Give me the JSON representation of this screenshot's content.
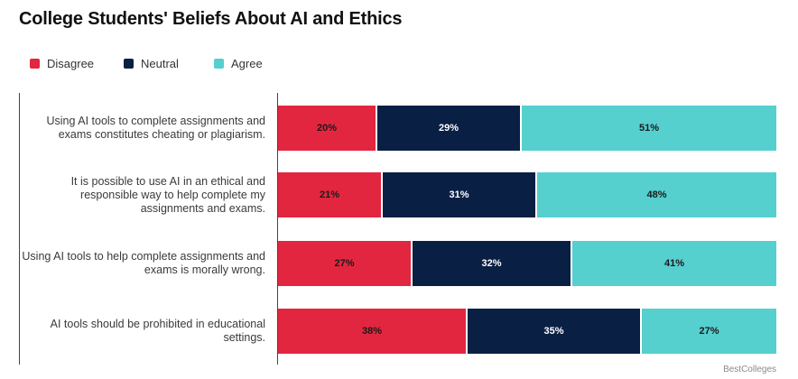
{
  "chart_data": {
    "type": "bar",
    "orientation": "horizontal",
    "stacked": true,
    "title": "College Students' Beliefs About AI and Ethics",
    "xlabel": "",
    "ylabel": "",
    "xlim": [
      0,
      100
    ],
    "grid": false,
    "legend_position": "top-left",
    "categories": [
      "Using AI tools to complete assignments and exams constitutes cheating or plagiarism.",
      "It is possible to use AI in an ethical and responsible way to help complete my assignments and exams.",
      "Using AI tools to help complete assignments and exams is morally wrong.",
      "AI tools should be prohibited in educational settings."
    ],
    "category_lines": [
      [
        "Using AI tools to complete assignments and",
        "exams constitutes cheating or plagiarism."
      ],
      [
        "It is possible to use AI in an ethical and",
        "responsible way to help complete my",
        "assignments and exams."
      ],
      [
        "Using AI tools to help complete assignments and",
        "exams is morally wrong."
      ],
      [
        "AI tools should be prohibited in educational",
        "settings."
      ]
    ],
    "series": [
      {
        "name": "Disagree",
        "color": "#e3263f",
        "text_color": "#1a1a1a",
        "values": [
          20,
          21,
          27,
          38
        ],
        "labels": [
          "20%",
          "21%",
          "27%",
          "38%"
        ]
      },
      {
        "name": "Neutral",
        "color": "#0a1f44",
        "text_color": "#ffffff",
        "values": [
          29,
          31,
          32,
          35
        ],
        "labels": [
          "29%",
          "31%",
          "32%",
          "35%"
        ]
      },
      {
        "name": "Agree",
        "color": "#56cfcf",
        "text_color": "#1a1a1a",
        "values": [
          51,
          48,
          41,
          27
        ],
        "labels": [
          "51%",
          "48%",
          "41%",
          "27%"
        ]
      }
    ]
  },
  "source": "BestColleges"
}
